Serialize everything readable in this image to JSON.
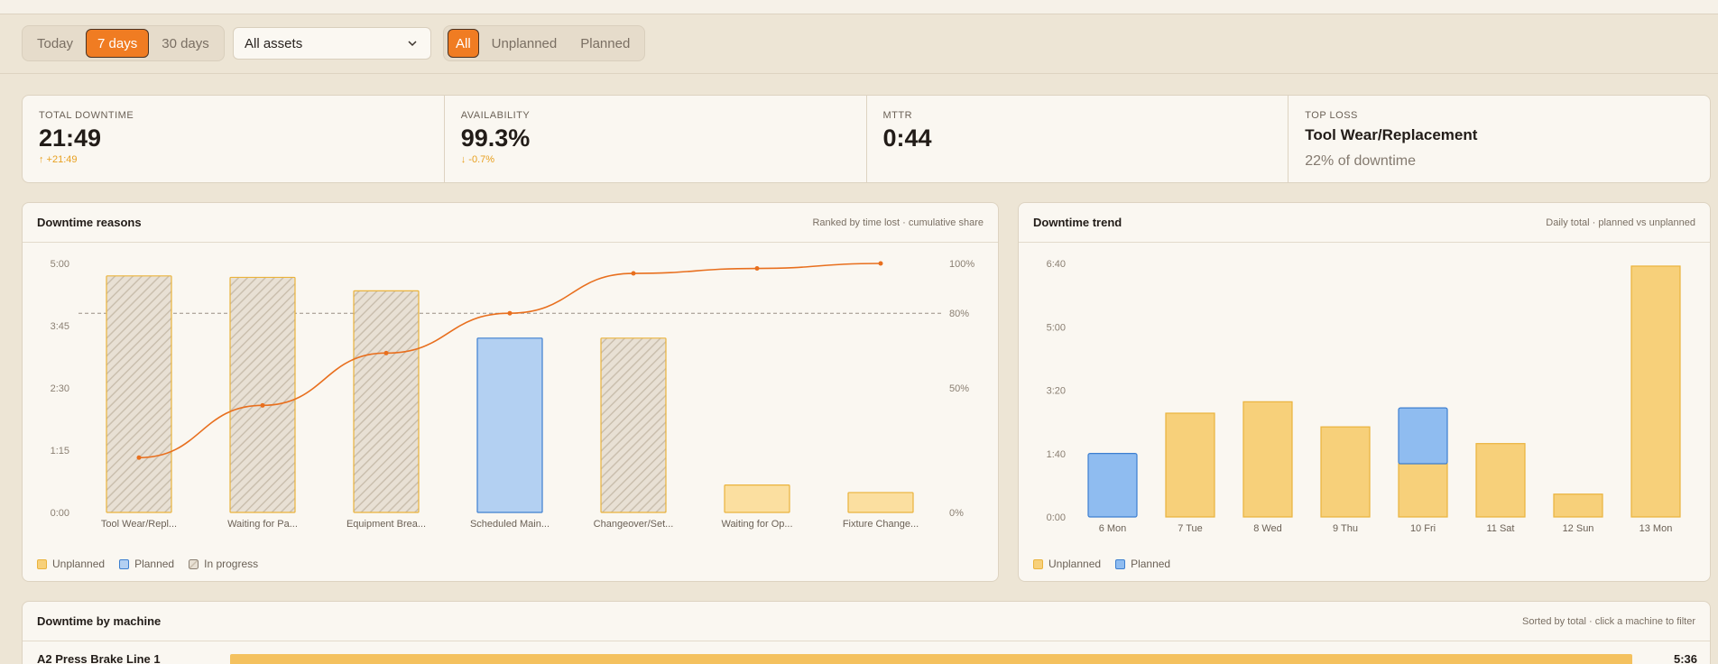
{
  "filters": {
    "ranges": [
      {
        "label": "Today",
        "active": false
      },
      {
        "label": "7 days",
        "active": true
      },
      {
        "label": "30 days",
        "active": false
      }
    ],
    "asset_select": "All assets",
    "types": [
      {
        "label": "All",
        "active": true
      },
      {
        "label": "Unplanned",
        "active": false
      },
      {
        "label": "Planned",
        "active": false
      }
    ]
  },
  "kpis": {
    "total": {
      "label": "Total downtime",
      "value": "21:49",
      "delta": "↑ +21:49"
    },
    "availability": {
      "label": "Availability",
      "value": "99.3%",
      "delta": "↓ -0.7%"
    },
    "mttr": {
      "label": "MTTR",
      "value": "0:44"
    },
    "top_loss": {
      "label": "Top loss",
      "title": "Tool Wear/Replacement",
      "sub": "22% of downtime"
    }
  },
  "reasons_card": {
    "title": "Downtime reasons",
    "subtitle": "Ranked by time lost · cumulative share",
    "legend": [
      "Unplanned",
      "Planned",
      "In progress"
    ]
  },
  "trend_card": {
    "title": "Downtime trend",
    "subtitle": "Daily total · planned vs unplanned",
    "legend": [
      "Unplanned",
      "Planned"
    ]
  },
  "machine_card": {
    "title": "Downtime by machine",
    "subtitle": "Sorted by total · click a machine to filter",
    "rows": [
      {
        "name": "A2 Press Brake Line 1",
        "total": "5:36",
        "share": 1.0
      }
    ]
  },
  "colors": {
    "accent": "#f07c22",
    "unplanned": "#f7d07a",
    "unplanned_border": "#eab33c",
    "planned": "#8fbcf0",
    "planned_border": "#3d7fd0",
    "line": "#e86f1e"
  },
  "chart_data": [
    {
      "type": "bar",
      "title": "Downtime reasons",
      "categories": [
        "Tool Wear/Repl...",
        "Waiting for Pa...",
        "Equipment Brea...",
        "Scheduled Main...",
        "Changeover/Set...",
        "Waiting for Op...",
        "Fixture Change..."
      ],
      "series": [
        {
          "name": "Unplanned",
          "values": [
            4.75,
            4.72,
            4.45,
            0,
            3.5,
            0.55,
            0.4
          ]
        },
        {
          "name": "Planned",
          "values": [
            0,
            0,
            0,
            3.5,
            0,
            0,
            0
          ]
        }
      ],
      "in_progress": [
        true,
        true,
        true,
        false,
        true,
        false,
        false
      ],
      "cumulative_pct": [
        22,
        43,
        64,
        80,
        96,
        98,
        100
      ],
      "y_ticks": [
        "0:00",
        "1:15",
        "2:30",
        "3:45",
        "5:00"
      ],
      "y2_ticks": [
        "0%",
        "50%",
        "80%",
        "100%"
      ],
      "ylim": [
        0,
        5
      ],
      "reference_line_pct": 80
    },
    {
      "type": "bar",
      "title": "Downtime trend",
      "categories": [
        "6 Mon",
        "7 Tue",
        "8 Wed",
        "9 Thu",
        "10 Fri",
        "11 Sat",
        "12 Sun",
        "13 Mon"
      ],
      "series": [
        {
          "name": "Unplanned",
          "values": [
            0,
            2.73,
            3.03,
            2.37,
            1.4,
            1.93,
            0.6,
            6.6
          ]
        },
        {
          "name": "Planned",
          "values": [
            1.67,
            0,
            0,
            0,
            1.47,
            0,
            0,
            0
          ]
        }
      ],
      "y_ticks": [
        "0:00",
        "1:40",
        "3:20",
        "5:00",
        "6:40"
      ],
      "ylim": [
        0,
        6.67
      ]
    }
  ]
}
